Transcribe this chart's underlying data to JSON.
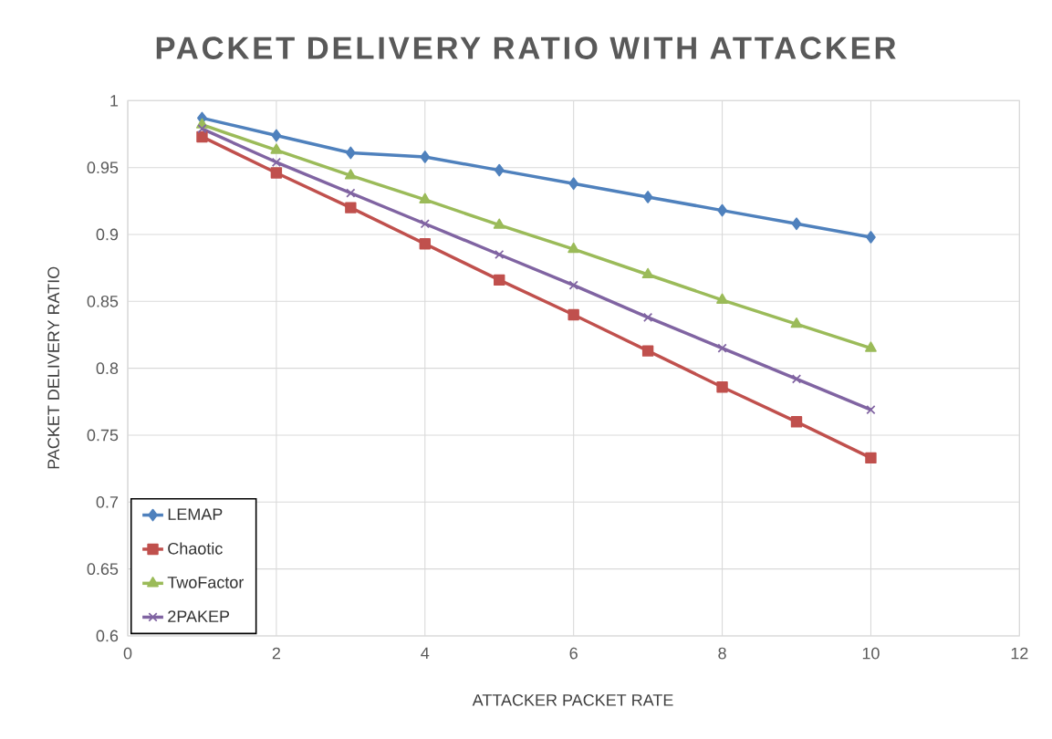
{
  "chart_data": {
    "type": "line",
    "title": "PACKET DELIVERY RATIO WITH ATTACKER",
    "xlabel": "ATTACKER PACKET RATE",
    "ylabel": "PACKET DELIVERY RATIO",
    "x": [
      1,
      2,
      3,
      4,
      5,
      6,
      7,
      8,
      9,
      10
    ],
    "series": [
      {
        "name": "LEMAP",
        "color": "#4f81bd",
        "marker": "diamond",
        "values": [
          0.987,
          0.974,
          0.961,
          0.958,
          0.948,
          0.938,
          0.928,
          0.918,
          0.908,
          0.898
        ]
      },
      {
        "name": "Chaotic",
        "color": "#c0504d",
        "marker": "square",
        "values": [
          0.973,
          0.946,
          0.92,
          0.893,
          0.866,
          0.84,
          0.813,
          0.786,
          0.76,
          0.733
        ]
      },
      {
        "name": "TwoFactor",
        "color": "#9bbb59",
        "marker": "triangle",
        "values": [
          0.982,
          0.963,
          0.944,
          0.926,
          0.907,
          0.889,
          0.87,
          0.851,
          0.833,
          0.815
        ]
      },
      {
        "name": "2PAKEP",
        "color": "#8064a2",
        "marker": "cross",
        "values": [
          0.979,
          0.954,
          0.931,
          0.908,
          0.885,
          0.862,
          0.838,
          0.815,
          0.792,
          0.769
        ]
      }
    ],
    "xlim": [
      0,
      12
    ],
    "xticks": [
      0,
      2,
      4,
      6,
      8,
      10,
      12
    ],
    "ylim": [
      0.6,
      1
    ],
    "yticks": [
      0.6,
      0.65,
      0.7,
      0.75,
      0.8,
      0.85,
      0.9,
      0.95,
      1
    ],
    "grid": true,
    "legend": "bottom left",
    "line_style": "solid"
  }
}
